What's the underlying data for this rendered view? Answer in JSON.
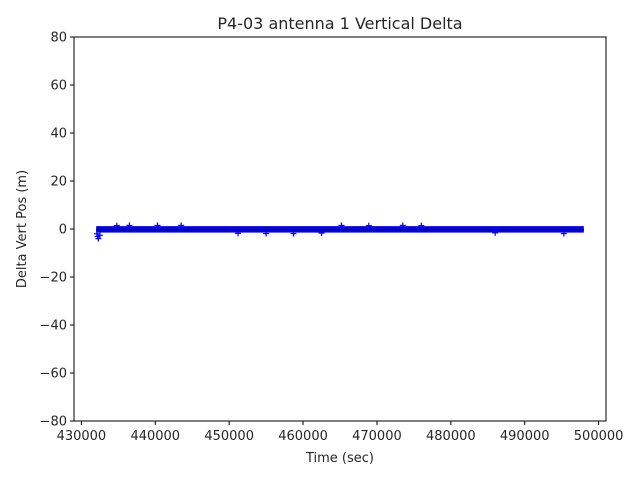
{
  "chart_data": {
    "type": "scatter",
    "title": "P4-03 antenna 1 Vertical Delta",
    "xlabel": "Time (sec)",
    "ylabel": "Delta Vert Pos (m)",
    "xlim": [
      429000,
      501000
    ],
    "ylim": [
      -80,
      80
    ],
    "xticks": [
      430000,
      440000,
      450000,
      460000,
      470000,
      480000,
      490000,
      500000
    ],
    "yticks": [
      -80,
      -60,
      -40,
      -20,
      0,
      20,
      40,
      60,
      80
    ],
    "xtick_labels": [
      "430000",
      "440000",
      "450000",
      "460000",
      "470000",
      "480000",
      "490000",
      "500000"
    ],
    "ytick_labels": [
      "−80",
      "−60",
      "−40",
      "−20",
      "0",
      "20",
      "40",
      "60",
      "80"
    ],
    "marker": "+",
    "grid": false,
    "series": [
      {
        "color": "#0000ff",
        "x_range": [
          432000,
          498000
        ],
        "band_center": -0.3,
        "band_extent": [
          -1.5,
          1.2
        ],
        "outliers": [
          {
            "x": 432100,
            "y": -2.0
          },
          {
            "x": 432200,
            "y": -3.1
          },
          {
            "x": 432300,
            "y": -4.0
          },
          {
            "x": 432500,
            "y": -2.6
          },
          {
            "x": 434800,
            "y": 1.4
          },
          {
            "x": 436500,
            "y": 1.5
          },
          {
            "x": 440300,
            "y": 1.5
          },
          {
            "x": 443500,
            "y": 1.5
          },
          {
            "x": 451200,
            "y": -1.8
          },
          {
            "x": 455000,
            "y": -1.9
          },
          {
            "x": 458700,
            "y": -1.9
          },
          {
            "x": 462500,
            "y": -1.7
          },
          {
            "x": 465200,
            "y": 1.5
          },
          {
            "x": 468900,
            "y": 1.4
          },
          {
            "x": 473500,
            "y": 1.5
          },
          {
            "x": 476000,
            "y": 1.4
          },
          {
            "x": 486000,
            "y": -1.6
          },
          {
            "x": 495300,
            "y": -1.9
          }
        ]
      }
    ]
  }
}
